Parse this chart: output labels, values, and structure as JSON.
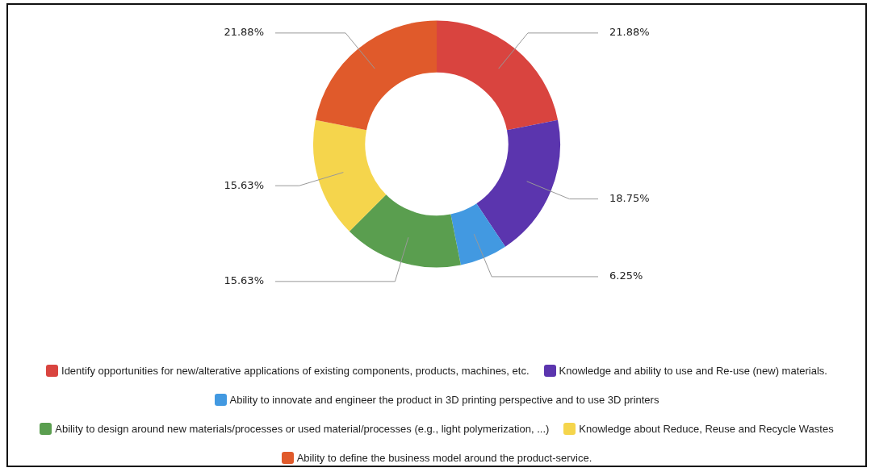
{
  "chart_data": {
    "type": "donut",
    "categories": [
      "Identify opportunities for new/alterative applications of existing components, products, machines, etc.",
      "Knowledge and ability to use and Re-use (new) materials.",
      "Ability to innovate and engineer the product in 3D printing perspective and to use 3D printers",
      "Ability to design around new materials/processes or used material/processes (e.g., light polymerization, ...)",
      "Knowledge about Reduce, Reuse and Recycle Wastes",
      "Ability to define the business model around the product-service."
    ],
    "values": [
      21.88,
      18.75,
      6.25,
      15.63,
      15.63,
      21.88
    ],
    "colors": [
      "#d9443f",
      "#5b35ae",
      "#4299e1",
      "#5a9e4f",
      "#f5d54c",
      "#e05a2b"
    ],
    "value_labels": [
      "21.88%",
      "18.75%",
      "6.25%",
      "15.63%",
      "15.63%",
      "21.88%"
    ],
    "legend": "bottom"
  }
}
